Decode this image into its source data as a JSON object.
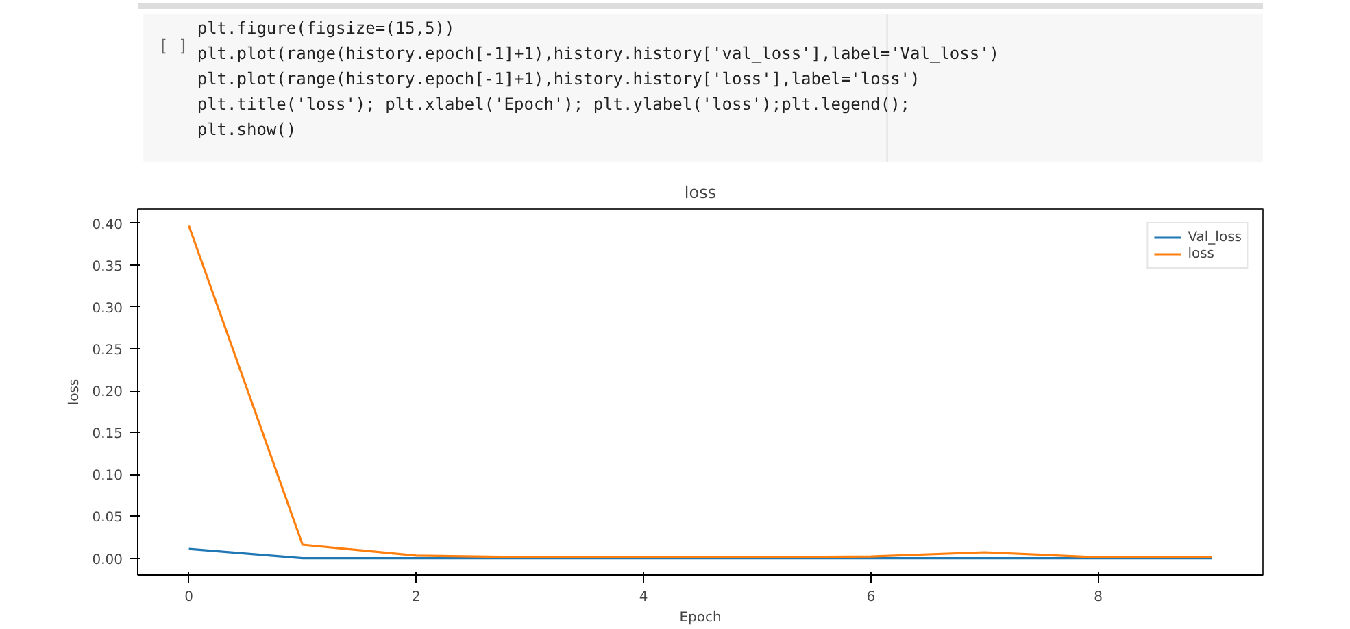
{
  "chart_data": {
    "type": "line",
    "title": "loss",
    "xlabel": "Epoch",
    "ylabel": "loss",
    "annotations": [
      "[ ]",
      "plt.figure(figsize=(15,5))",
      "plt.plot(range(history.epoch[-1]+1),history.history['val_loss'],label='Val_loss')",
      "plt.plot(range(history.epoch[-1]+1),history.history['loss'],label='loss')",
      "plt.title('loss'); plt.xlabel('Epoch'); plt.ylabel('loss');plt.legend();",
      "plt.show()"
    ],
    "x": [
      0,
      1,
      2,
      3,
      4,
      5,
      6,
      7,
      8,
      9
    ],
    "series": [
      {
        "name": "Val_loss",
        "color": "#1f77b4",
        "values": [
          0.011,
          0,
          0,
          0,
          0,
          0,
          0,
          0,
          0,
          0
        ]
      },
      {
        "name": "loss",
        "color": "#ff7f0e",
        "values": [
          0.397,
          0.016,
          0.003,
          0.001,
          0.001,
          0.001,
          0.002,
          0.007,
          0.001,
          0.001
        ]
      }
    ],
    "xlim": [
      -0.45,
      9.45
    ],
    "ylim": [
      -0.02,
      0.417
    ],
    "xticks": [
      0,
      2,
      4,
      6,
      8
    ],
    "yticks": [
      {
        "value": 0,
        "label": "0.00"
      },
      {
        "value": 0.05,
        "label": "0.05"
      },
      {
        "value": 0.1,
        "label": "0.10"
      },
      {
        "value": 0.15,
        "label": "0.15"
      },
      {
        "value": 0.2,
        "label": "0.20"
      },
      {
        "value": 0.25,
        "label": "0.25"
      },
      {
        "value": 0.3,
        "label": "0.30"
      },
      {
        "value": 0.35,
        "label": "0.35"
      },
      {
        "value": 0.4,
        "label": "0.40"
      }
    ],
    "grid": false,
    "legend": "top right"
  }
}
